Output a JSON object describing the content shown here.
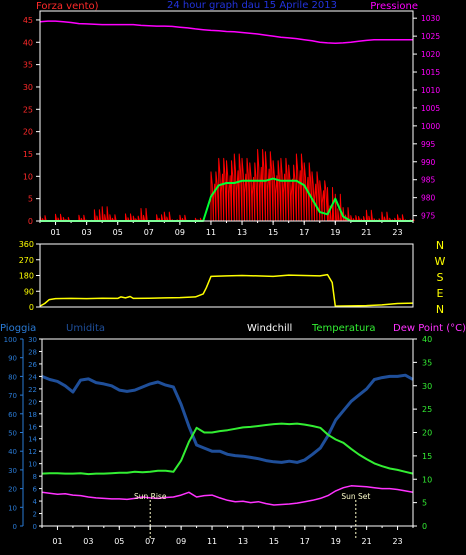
{
  "header": {
    "left_label": "Forza vento)",
    "center_label": "24 hour graph dau   15 Aprile 2013",
    "right_label": "Pressione"
  },
  "colors": {
    "background": "#000000",
    "axis": "#ffffff",
    "grid": "#555555",
    "wind": "#ff2a2a",
    "wind_gust": "#ff0000",
    "pressure": "#ff00ff",
    "wind_avg": "#00ff33",
    "direction": "#ffff00",
    "humidity": "#1f4f9a",
    "humidity_axis": "#2a7bd6",
    "temperature": "#33ee33",
    "dewpoint": "#ff33ff",
    "windchill_label": "#ffffff",
    "sun_marker": "#ffffcc"
  },
  "chart_data": [
    {
      "type": "line",
      "title": "24 hour graph dau   15 Aprile 2013",
      "x_ticks": [
        "01",
        "03",
        "05",
        "07",
        "09",
        "11",
        "13",
        "15",
        "17",
        "19",
        "21",
        "23"
      ],
      "y_left_label": "Forza vento)",
      "y_left_ticks": [
        0,
        5,
        10,
        15,
        20,
        25,
        30,
        35,
        40,
        45
      ],
      "ylim_left": [
        0,
        47
      ],
      "y_right_label": "Pressione",
      "y_right_ticks": [
        975,
        980,
        985,
        990,
        995,
        1000,
        1005,
        1010,
        1015,
        1020,
        1025,
        1030
      ],
      "ylim_right": [
        973.5,
        1032
      ],
      "x_hours": [
        0,
        0.5,
        1,
        1.5,
        2,
        2.5,
        3,
        3.5,
        4,
        4.5,
        5,
        5.5,
        6,
        6.5,
        7,
        7.5,
        8,
        8.5,
        9,
        9.5,
        10,
        10.5,
        11,
        11.5,
        12,
        12.5,
        13,
        13.5,
        14,
        14.5,
        15,
        15.5,
        16,
        16.5,
        17,
        17.5,
        18,
        18.5,
        19,
        19.5,
        20,
        20.5,
        21,
        21.5,
        22,
        22.5,
        23,
        23.5,
        24
      ],
      "series": [
        {
          "name": "Pressione",
          "axis": "right",
          "values": [
            1029,
            1029.2,
            1029.2,
            1029,
            1028.8,
            1028.5,
            1028.4,
            1028.3,
            1028.2,
            1028.2,
            1028.2,
            1028.2,
            1028.2,
            1028,
            1027.9,
            1027.8,
            1027.8,
            1027.7,
            1027.5,
            1027.3,
            1027,
            1026.8,
            1026.6,
            1026.5,
            1026.3,
            1026.2,
            1026,
            1025.8,
            1025.6,
            1025.3,
            1025,
            1024.7,
            1024.5,
            1024.3,
            1024,
            1023.7,
            1023.3,
            1023.1,
            1023,
            1023.1,
            1023.3,
            1023.6,
            1023.8,
            1024,
            1024,
            1024,
            1024,
            1024,
            1024
          ]
        },
        {
          "name": "Wind gust",
          "axis": "left",
          "values": [
            1.2,
            0,
            1.5,
            0.8,
            0,
            1.3,
            0.2,
            2.5,
            3.2,
            1.4,
            0,
            1.6,
            1.1,
            2.8,
            0,
            1.4,
            2,
            0.3,
            1.3,
            0,
            0.6,
            0,
            11,
            14,
            13.5,
            15,
            14,
            13,
            16,
            15.5,
            13.5,
            14,
            12.5,
            15,
            13,
            11,
            9,
            7.5,
            6,
            3,
            1.2,
            1,
            2.4,
            0.5,
            2,
            0.6,
            1.4,
            0.3,
            0.5
          ]
        },
        {
          "name": "Wind avg",
          "axis": "left",
          "values": [
            0,
            0,
            0,
            0,
            0,
            0,
            0,
            0,
            0,
            0,
            0,
            0,
            0,
            0,
            0,
            0,
            0,
            0,
            0,
            0,
            0,
            0,
            5.5,
            8,
            8.5,
            8.5,
            9,
            9,
            9,
            9,
            9.5,
            9,
            9,
            9,
            8,
            5,
            2,
            1.5,
            5,
            1,
            0,
            0,
            0,
            0,
            0,
            0,
            0,
            0,
            0
          ]
        }
      ]
    },
    {
      "type": "line",
      "y_left_ticks": [
        0,
        90,
        180,
        270,
        360
      ],
      "ylim": [
        0,
        360
      ],
      "direction_labels": [
        "N",
        "W",
        "S",
        "E",
        "N"
      ],
      "x_hours": [
        0,
        0.3,
        0.6,
        1,
        2,
        3,
        4,
        5,
        5.2,
        5.5,
        5.8,
        6,
        7,
        8,
        9,
        10,
        10.5,
        10.7,
        11,
        12,
        13,
        14,
        15,
        16,
        17,
        18,
        18.5,
        18.8,
        19,
        20,
        21,
        22,
        23,
        24
      ],
      "series": [
        {
          "name": "Wind direction",
          "values": [
            5,
            20,
            42,
            48,
            49,
            48,
            50,
            49,
            58,
            52,
            60,
            49,
            50,
            52,
            54,
            58,
            75,
            110,
            175,
            178,
            180,
            178,
            175,
            182,
            180,
            178,
            185,
            140,
            5,
            6,
            8,
            12,
            20,
            22
          ]
        }
      ]
    },
    {
      "type": "line",
      "legend": [
        "Pioggia",
        "Umidita",
        "Windchill",
        "Temperatura",
        "Dew Point (°C)"
      ],
      "x_ticks": [
        "01",
        "03",
        "05",
        "07",
        "09",
        "11",
        "13",
        "15",
        "17",
        "19",
        "21",
        "23"
      ],
      "y_rain_ticks": [
        0,
        10,
        20,
        30,
        40,
        50,
        60,
        70,
        80,
        90,
        100
      ],
      "y_humidity_ticks": [
        0,
        2,
        4,
        6,
        8,
        10,
        12,
        14,
        16,
        18,
        20,
        22,
        24,
        26,
        28,
        30
      ],
      "y_right_ticks": [
        0,
        5,
        10,
        15,
        20,
        25,
        30,
        35,
        40
      ],
      "ylim_left": [
        0,
        30
      ],
      "ylim_right": [
        0,
        40
      ],
      "annotations": [
        {
          "label": "Sun Rise",
          "hour": 7.0
        },
        {
          "label": "Sun Set",
          "hour": 20.3
        }
      ],
      "x_hours": [
        0,
        0.5,
        1,
        1.5,
        2,
        2.5,
        3,
        3.5,
        4,
        4.5,
        5,
        5.5,
        6,
        6.5,
        7,
        7.5,
        8,
        8.5,
        9,
        9.5,
        10,
        10.5,
        11,
        11.5,
        12,
        12.5,
        13,
        13.5,
        14,
        14.5,
        15,
        15.5,
        16,
        16.5,
        17,
        17.5,
        18,
        18.5,
        19,
        19.5,
        20,
        20.5,
        21,
        21.5,
        22,
        22.5,
        23,
        23.5,
        24
      ],
      "series": [
        {
          "name": "Umidita",
          "axis": "humidity",
          "values": [
            24,
            23.5,
            23.2,
            22.5,
            21.5,
            23.4,
            23.6,
            23,
            22.8,
            22.5,
            21.8,
            21.6,
            21.8,
            22.3,
            22.8,
            23.1,
            22.6,
            22.3,
            19.5,
            16,
            13,
            12.5,
            12,
            12,
            11.5,
            11.3,
            11.2,
            11,
            10.8,
            10.5,
            10.3,
            10.2,
            10.4,
            10.2,
            10.6,
            11.5,
            12.5,
            14.5,
            17,
            18.5,
            20,
            21,
            22,
            23.5,
            23.8,
            24,
            24,
            24.2,
            23.5
          ]
        },
        {
          "name": "Temperatura",
          "axis": "right",
          "values": [
            11.2,
            11.3,
            11.3,
            11.2,
            11.2,
            11.3,
            11.1,
            11.2,
            11.2,
            11.3,
            11.4,
            11.4,
            11.6,
            11.5,
            11.6,
            11.8,
            11.8,
            11.6,
            14,
            18,
            21,
            20,
            20,
            20.3,
            20.5,
            20.8,
            21.1,
            21.2,
            21.4,
            21.6,
            21.8,
            21.9,
            21.8,
            21.9,
            21.7,
            21.4,
            21,
            19.5,
            18.5,
            17.8,
            16.5,
            15.3,
            14.3,
            13.4,
            12.8,
            12.3,
            12,
            11.6,
            11.2
          ]
        },
        {
          "name": "Dew Point",
          "axis": "right",
          "values": [
            7.2,
            7,
            6.8,
            6.9,
            6.6,
            6.5,
            6.2,
            6,
            5.9,
            5.8,
            5.8,
            5.7,
            5.9,
            6.2,
            6,
            5.9,
            6.1,
            6.2,
            6.6,
            7.2,
            6.2,
            6.5,
            6.6,
            6,
            5.5,
            5.2,
            5.3,
            5,
            5.2,
            4.8,
            4.5,
            4.6,
            4.7,
            4.9,
            5.2,
            5.5,
            5.9,
            6.5,
            7.5,
            8.2,
            8.6,
            8.5,
            8.4,
            8.2,
            8,
            8,
            7.8,
            7.5,
            7.2
          ]
        }
      ]
    }
  ]
}
